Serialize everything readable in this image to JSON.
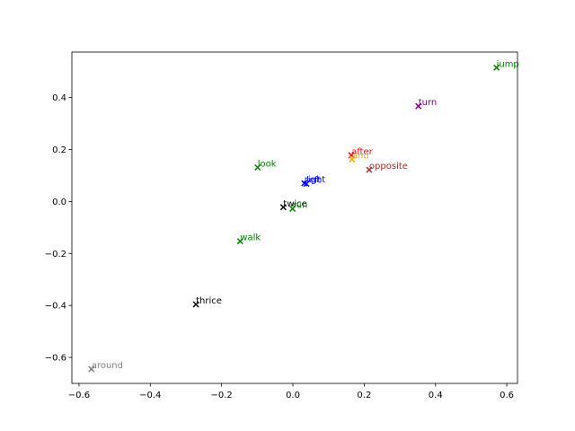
{
  "chart_data": {
    "type": "scatter",
    "title": "",
    "xlabel": "",
    "ylabel": "",
    "xlim": [
      -0.62,
      0.63
    ],
    "ylim": [
      -0.7,
      0.575
    ],
    "grid": false,
    "legend": "none",
    "marker": "x",
    "x_ticks": [
      -0.6,
      -0.4,
      -0.2,
      0.0,
      0.2,
      0.4,
      0.6
    ],
    "x_tick_labels": [
      "−0.6",
      "−0.4",
      "−0.2",
      "0.0",
      "0.2",
      "0.4",
      "0.6"
    ],
    "y_ticks": [
      -0.6,
      -0.4,
      -0.2,
      0.0,
      0.2,
      0.4
    ],
    "y_tick_labels": [
      "−0.6",
      "−0.4",
      "−0.2",
      "0.0",
      "0.2",
      "0.4"
    ],
    "points": [
      {
        "label": "jump",
        "x": 0.571,
        "y": 0.515,
        "color": "#008000"
      },
      {
        "label": "turn",
        "x": 0.352,
        "y": 0.367,
        "color": "#800080"
      },
      {
        "label": "after",
        "x": 0.164,
        "y": 0.178,
        "color": "#ff0000"
      },
      {
        "label": "and",
        "x": 0.166,
        "y": 0.162,
        "color": "#ffa500"
      },
      {
        "label": "opposite",
        "x": 0.214,
        "y": 0.122,
        "color": "#a52a2a"
      },
      {
        "label": "look",
        "x": -0.099,
        "y": 0.131,
        "color": "#008000"
      },
      {
        "label": "right",
        "x": 0.032,
        "y": 0.07,
        "color": "#0000ff"
      },
      {
        "label": "left",
        "x": 0.038,
        "y": 0.068,
        "color": "#0000ff"
      },
      {
        "label": "twice",
        "x": -0.027,
        "y": -0.022,
        "color": "#000000"
      },
      {
        "label": "run",
        "x": -0.001,
        "y": -0.028,
        "color": "#008000"
      },
      {
        "label": "walk",
        "x": -0.148,
        "y": -0.153,
        "color": "#008000"
      },
      {
        "label": "thrice",
        "x": -0.272,
        "y": -0.396,
        "color": "#000000"
      },
      {
        "label": "around",
        "x": -0.565,
        "y": -0.645,
        "color": "#808080"
      }
    ]
  }
}
